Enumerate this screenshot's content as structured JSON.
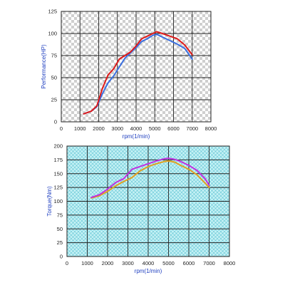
{
  "chart_data": [
    {
      "type": "line",
      "xlabel": "rpm(1/min)",
      "ylabel": "Performance(HP)",
      "xlim": [
        0,
        8000
      ],
      "ylim": [
        0,
        125
      ],
      "xticks": [
        0,
        1000,
        2000,
        3000,
        4000,
        5000,
        6000,
        7000,
        8000
      ],
      "yticks": [
        0,
        25,
        50,
        75,
        100,
        125
      ],
      "grid": true,
      "background": "checkered-gray",
      "series": [
        {
          "color": "#3a6fe0",
          "x": [
            1200,
            1600,
            1900,
            2200,
            2500,
            2800,
            3100,
            3400,
            3700,
            4000,
            4300,
            4600,
            4900,
            5100,
            5400,
            5800,
            6200,
            6600,
            7000
          ],
          "y": [
            9,
            12,
            17,
            32,
            44,
            52,
            62,
            72,
            78,
            84,
            91,
            94,
            98,
            99,
            96,
            92,
            88,
            83,
            71
          ]
        },
        {
          "color": "#dd1a1a",
          "x": [
            1200,
            1600,
            1900,
            2200,
            2500,
            2800,
            3100,
            3400,
            3700,
            4000,
            4300,
            4600,
            4900,
            5100,
            5400,
            5800,
            6200,
            6600,
            7000
          ],
          "y": [
            9,
            12,
            18,
            38,
            53,
            60,
            71,
            75,
            79,
            86,
            94,
            97,
            100,
            102,
            100,
            97,
            94,
            87,
            76
          ]
        }
      ]
    },
    {
      "type": "line",
      "xlabel": "rpm(1/min)",
      "ylabel": "Torque(Nm)",
      "xlim": [
        0,
        8000
      ],
      "ylim": [
        0,
        200
      ],
      "xticks": [
        0,
        1000,
        2000,
        3000,
        4000,
        5000,
        6000,
        7000,
        8000
      ],
      "yticks": [
        0,
        25,
        50,
        75,
        100,
        125,
        150,
        175,
        200
      ],
      "grid": true,
      "background": "crosshatch-cyan",
      "series": [
        {
          "color": "#e0a020",
          "x": [
            1200,
            1600,
            2000,
            2400,
            2800,
            3200,
            3600,
            4000,
            4400,
            4800,
            5000,
            5300,
            5600,
            6000,
            6400,
            6800,
            7000
          ],
          "y": [
            106,
            110,
            118,
            128,
            136,
            143,
            155,
            163,
            168,
            172,
            173,
            171,
            165,
            158,
            148,
            133,
            125
          ]
        },
        {
          "color": "#c030e0",
          "x": [
            1200,
            1600,
            2000,
            2400,
            2800,
            3200,
            3600,
            4000,
            4400,
            4800,
            5000,
            5300,
            5600,
            6000,
            6400,
            6800,
            7000
          ],
          "y": [
            107,
            112,
            122,
            134,
            141,
            158,
            163,
            168,
            173,
            177,
            178,
            176,
            172,
            165,
            156,
            141,
            129
          ]
        }
      ]
    }
  ]
}
